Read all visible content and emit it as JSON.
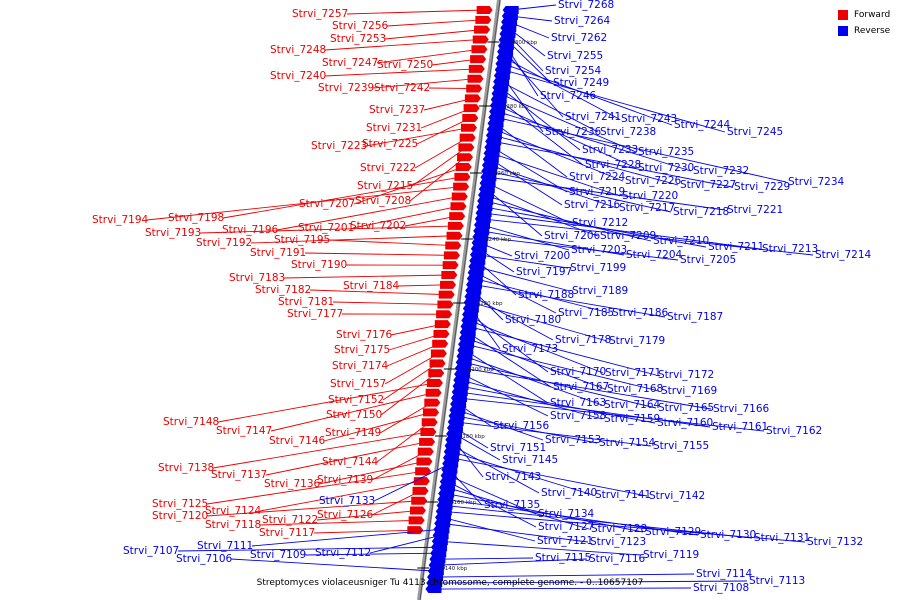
{
  "title": "Streptomyces violaceusniger Tu 4113 chromosome, complete genome. - 0..10657107",
  "legend": [
    {
      "label": "Forward",
      "color": "#ee0000"
    },
    {
      "label": "Reverse",
      "color": "#0000ee"
    }
  ],
  "scale_labels": [
    "8300 kbp",
    "8280 kbp",
    "8260 kbp",
    "8240 kbp",
    "8220 kbp",
    "8200 kbp",
    "8180 kbp",
    "8160 kbp",
    "8140 kbp"
  ],
  "forward_genes": [
    "Strvi_7257",
    "Strvi_7256",
    "Strvi_7253",
    "Strvi_7248",
    "Strvi_7247",
    "Strvi_7250",
    "Strvi_7240",
    "Strvi_7239",
    "Strvi_7242",
    "Strvi_7237",
    "Strvi_7231",
    "Strvi_7225",
    "Strvi_7223",
    "Strvi_7222",
    "Strvi_7215",
    "Strvi_7208",
    "Strvi_7207",
    "Strvi_7198",
    "Strvi_7194",
    "Strvi_7196",
    "Strvi_7201",
    "Strvi_7202",
    "Strvi_7193",
    "Strvi_7192",
    "Strvi_7195",
    "Strvi_7191",
    "Strvi_7190",
    "Strvi_7183",
    "Strvi_7184",
    "Strvi_7182",
    "Strvi_7181",
    "Strvi_7177",
    "Strvi_7176",
    "Strvi_7175",
    "Strvi_7174",
    "Strvi_7157",
    "Strvi_7152",
    "Strvi_7150",
    "Strvi_7148",
    "Strvi_7147",
    "Strvi_7149",
    "Strvi_7146",
    "Strvi_7144",
    "Strvi_7138",
    "Strvi_7137",
    "Strvi_7139",
    "Strvi_7136",
    "Strvi_7125",
    "Strvi_7124",
    "Strvi_7126",
    "Strvi_7120",
    "Strvi_7122",
    "Strvi_7118",
    "Strvi_7117"
  ],
  "reverse_genes": [
    "Strvi_7268",
    "Strvi_7264",
    "Strvi_7262",
    "Strvi_7255",
    "Strvi_7254",
    "Strvi_7249",
    "Strvi_7246",
    "Strvi_7241",
    "Strvi_7243",
    "Strvi_7244",
    "Strvi_7245",
    "Strvi_7236",
    "Strvi_7238",
    "Strvi_7233",
    "Strvi_7235",
    "Strvi_7228",
    "Strvi_7230",
    "Strvi_7232",
    "Strvi_7234",
    "Strvi_7224",
    "Strvi_7226",
    "Strvi_7227",
    "Strvi_7229",
    "Strvi_7219",
    "Strvi_7220",
    "Strvi_7216",
    "Strvi_7217",
    "Strvi_7218",
    "Strvi_7221",
    "Strvi_7212",
    "Strvi_7206",
    "Strvi_7209",
    "Strvi_7210",
    "Strvi_7211",
    "Strvi_7213",
    "Strvi_7214",
    "Strvi_7203",
    "Strvi_7204",
    "Strvi_7205",
    "Strvi_7200",
    "Strvi_7197",
    "Strvi_7199",
    "Strvi_7188",
    "Strvi_7189",
    "Strvi_7185",
    "Strvi_7186",
    "Strvi_7187",
    "Strvi_7180",
    "Strvi_7178",
    "Strvi_7179",
    "Strvi_7173",
    "Strvi_7170",
    "Strvi_7171",
    "Strvi_7172",
    "Strvi_7167",
    "Strvi_7168",
    "Strvi_7169",
    "Strvi_7163",
    "Strvi_7164",
    "Strvi_7165",
    "Strvi_7166",
    "Strvi_7158",
    "Strvi_7159",
    "Strvi_7160",
    "Strvi_7161",
    "Strvi_7162",
    "Strvi_7156",
    "Strvi_7153",
    "Strvi_7154",
    "Strvi_7155",
    "Strvi_7151",
    "Strvi_7145",
    "Strvi_7143",
    "Strvi_7140",
    "Strvi_7141",
    "Strvi_7142",
    "Strvi_7133",
    "Strvi_7135",
    "Strvi_7134",
    "Strvi_7127",
    "Strvi_7128",
    "Strvi_7129",
    "Strvi_7130",
    "Strvi_7131",
    "Strvi_7132",
    "Strvi_7121",
    "Strvi_7123",
    "Strvi_7111",
    "Strvi_7112",
    "Strvi_7119",
    "Strvi_7107",
    "Strvi_7109",
    "Strvi_7115",
    "Strvi_7116",
    "Strvi_7106",
    "Strvi_7114",
    "Strvi_7113",
    "Strvi_7108"
  ]
}
